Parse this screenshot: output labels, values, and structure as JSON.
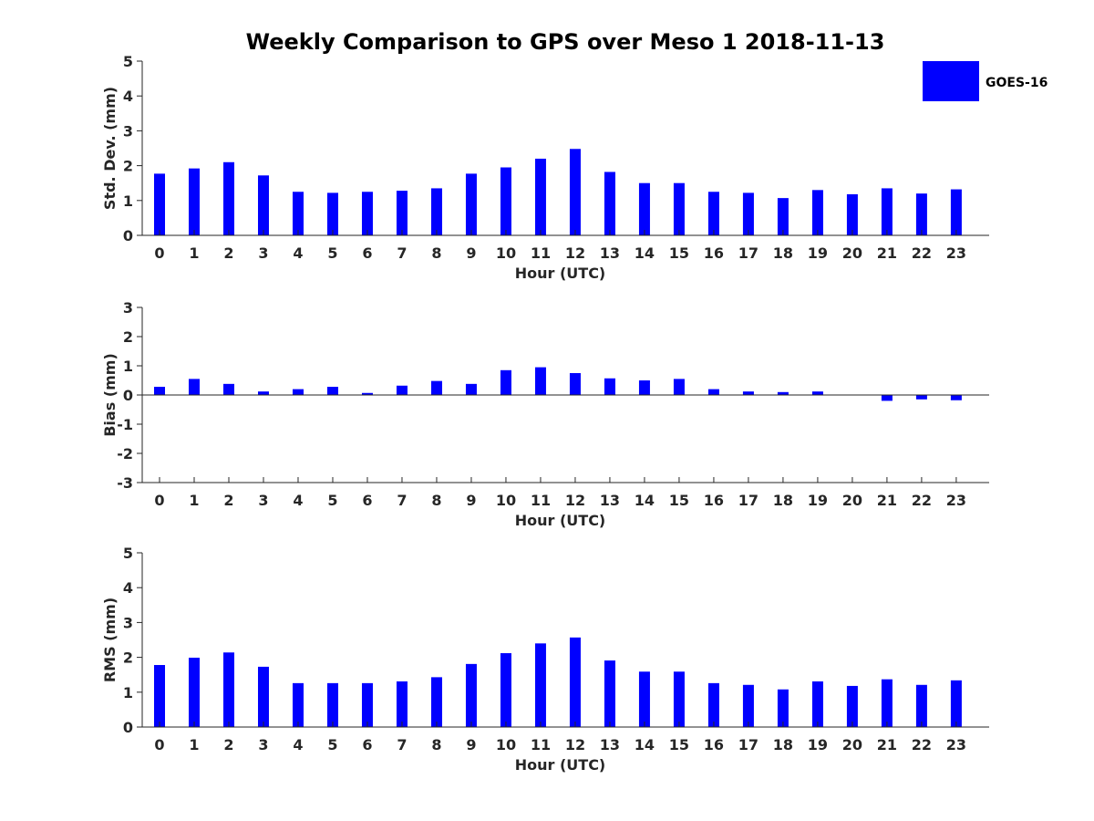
{
  "title": "Weekly Comparison to GPS over Meso 1 2018-11-13",
  "chart_data": [
    {
      "type": "bar",
      "ylabel": "Std. Dev. (mm)",
      "xlabel": "Hour (UTC)",
      "ylim": [
        0,
        5
      ],
      "yticks": [
        0,
        1,
        2,
        3,
        4,
        5
      ],
      "categories": [
        "0",
        "1",
        "2",
        "3",
        "4",
        "5",
        "6",
        "7",
        "8",
        "9",
        "10",
        "11",
        "12",
        "13",
        "14",
        "15",
        "16",
        "17",
        "18",
        "19",
        "20",
        "21",
        "22",
        "23"
      ],
      "series": [
        {
          "name": "GOES-16",
          "values": [
            1.77,
            1.92,
            2.1,
            1.72,
            1.25,
            1.22,
            1.25,
            1.28,
            1.35,
            1.77,
            1.95,
            2.2,
            2.48,
            1.82,
            1.5,
            1.5,
            1.25,
            1.22,
            1.07,
            1.3,
            1.18,
            1.35,
            1.2,
            1.32
          ]
        }
      ],
      "legend": {
        "entries": [
          "GOES-16"
        ],
        "position": "top-right"
      }
    },
    {
      "type": "bar",
      "ylabel": "Bias (mm)",
      "xlabel": "Hour (UTC)",
      "ylim": [
        -3,
        3
      ],
      "yticks": [
        -3,
        -2,
        -1,
        0,
        1,
        2,
        3
      ],
      "categories": [
        "0",
        "1",
        "2",
        "3",
        "4",
        "5",
        "6",
        "7",
        "8",
        "9",
        "10",
        "11",
        "12",
        "13",
        "14",
        "15",
        "16",
        "17",
        "18",
        "19",
        "20",
        "21",
        "22",
        "23"
      ],
      "series": [
        {
          "name": "GOES-16",
          "values": [
            0.28,
            0.55,
            0.38,
            0.12,
            0.2,
            0.28,
            0.07,
            0.32,
            0.48,
            0.38,
            0.85,
            0.95,
            0.75,
            0.57,
            0.5,
            0.55,
            0.2,
            0.12,
            0.1,
            0.12,
            0.0,
            -0.2,
            -0.15,
            -0.18
          ]
        }
      ]
    },
    {
      "type": "bar",
      "ylabel": "RMS (mm)",
      "xlabel": "Hour (UTC)",
      "ylim": [
        0,
        5
      ],
      "yticks": [
        0,
        1,
        2,
        3,
        4,
        5
      ],
      "categories": [
        "0",
        "1",
        "2",
        "3",
        "4",
        "5",
        "6",
        "7",
        "8",
        "9",
        "10",
        "11",
        "12",
        "13",
        "14",
        "15",
        "16",
        "17",
        "18",
        "19",
        "20",
        "21",
        "22",
        "23"
      ],
      "series": [
        {
          "name": "GOES-16",
          "values": [
            1.78,
            1.99,
            2.14,
            1.73,
            1.26,
            1.26,
            1.26,
            1.31,
            1.43,
            1.81,
            2.12,
            2.4,
            2.57,
            1.91,
            1.59,
            1.59,
            1.26,
            1.21,
            1.08,
            1.31,
            1.18,
            1.37,
            1.21,
            1.34
          ]
        }
      ]
    }
  ],
  "colors": {
    "bar": "#0000ff",
    "axis": "#262626",
    "title": "#000000",
    "background": "#ffffff"
  }
}
